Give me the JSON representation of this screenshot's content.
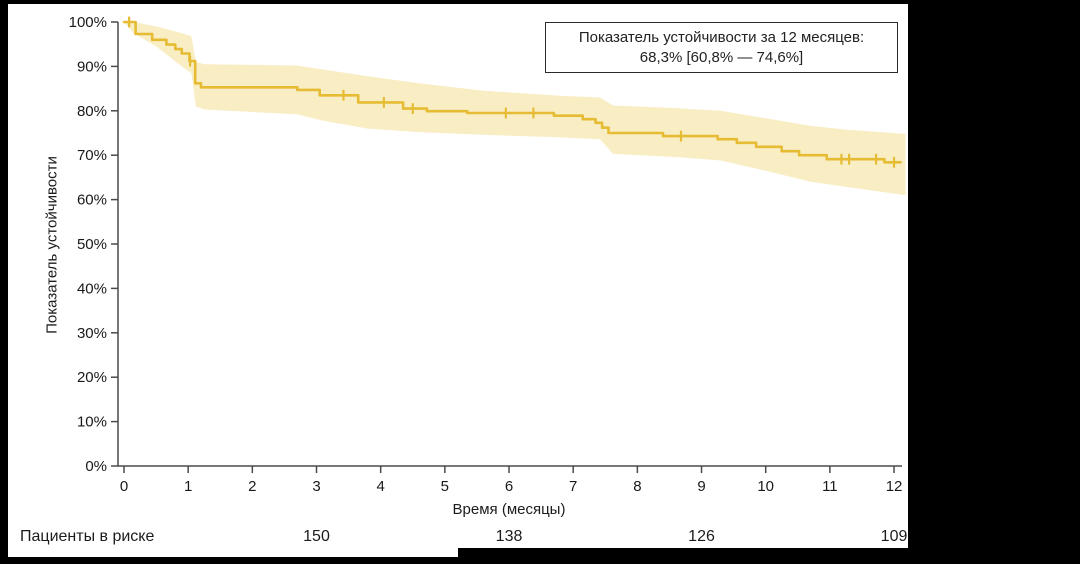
{
  "annotation": {
    "line1": "Показатель устойчивости за 12 месяцев:",
    "line2": "68,3% [60,8% — 74,6%]"
  },
  "y_axis": {
    "title": "Показатель устойчивости",
    "ticks": [
      {
        "v": 100,
        "label": "100%"
      },
      {
        "v": 90,
        "label": "90%"
      },
      {
        "v": 80,
        "label": "80%"
      },
      {
        "v": 70,
        "label": "70%"
      },
      {
        "v": 60,
        "label": "60%"
      },
      {
        "v": 50,
        "label": "50%"
      },
      {
        "v": 40,
        "label": "40%"
      },
      {
        "v": 30,
        "label": "30%"
      },
      {
        "v": 20,
        "label": "20%"
      },
      {
        "v": 10,
        "label": "10%"
      },
      {
        "v": 0,
        "label": "0%"
      }
    ]
  },
  "x_axis": {
    "title": "Время (месяцы)",
    "ticks": [
      {
        "m": 0,
        "label": "0"
      },
      {
        "m": 1,
        "label": "1"
      },
      {
        "m": 2,
        "label": "2"
      },
      {
        "m": 3,
        "label": "3"
      },
      {
        "m": 4,
        "label": "4"
      },
      {
        "m": 5,
        "label": "5"
      },
      {
        "m": 6,
        "label": "6"
      },
      {
        "m": 7,
        "label": "7"
      },
      {
        "m": 8,
        "label": "8"
      },
      {
        "m": 9,
        "label": "9"
      },
      {
        "m": 10,
        "label": "10"
      },
      {
        "m": 11,
        "label": "11"
      },
      {
        "m": 12,
        "label": "12"
      }
    ]
  },
  "at_risk": {
    "label": "Пациенты в риске",
    "entries": [
      {
        "month": 3,
        "value": "150"
      },
      {
        "month": 6,
        "value": "138"
      },
      {
        "month": 9,
        "value": "126"
      },
      {
        "month": 12,
        "value": "109"
      }
    ]
  },
  "chart_data": {
    "type": "line",
    "subtype": "kaplan-meier-step",
    "title": "",
    "xlabel": "Время (месяцы)",
    "ylabel": "Показатель устойчивости",
    "xlim": [
      0,
      12
    ],
    "ylim": [
      0,
      100
    ],
    "grid": false,
    "line_color": "#e5bc33",
    "band_color": "#f9edc4",
    "axis_color": "#4a4a4a",
    "estimate_12m": {
      "value_pct": 68.3,
      "ci_low_pct": 60.8,
      "ci_high_pct": 74.6
    },
    "steps": [
      [
        0,
        100
      ],
      [
        0.18,
        97.3
      ],
      [
        0.44,
        96.0
      ],
      [
        0.66,
        94.9
      ],
      [
        0.8,
        93.9
      ],
      [
        0.9,
        92.9
      ],
      [
        1.02,
        91.2
      ],
      [
        1.11,
        86.2
      ],
      [
        1.2,
        85.3
      ],
      [
        2.7,
        84.7
      ],
      [
        3.05,
        83.5
      ],
      [
        3.65,
        81.9
      ],
      [
        4.35,
        80.5
      ],
      [
        4.72,
        79.9
      ],
      [
        5.35,
        79.5
      ],
      [
        6.7,
        78.9
      ],
      [
        7.15,
        78.1
      ],
      [
        7.35,
        77.3
      ],
      [
        7.45,
        76.2
      ],
      [
        7.55,
        75.0
      ],
      [
        8.4,
        74.3
      ],
      [
        9.25,
        73.6
      ],
      [
        9.55,
        72.8
      ],
      [
        9.85,
        71.9
      ],
      [
        10.25,
        70.9
      ],
      [
        10.52,
        70.0
      ],
      [
        10.95,
        69.1
      ],
      [
        11.85,
        68.4
      ]
    ],
    "curve_end": 12.1,
    "censor_marks": [
      [
        0.08,
        100
      ],
      [
        1.03,
        91.2
      ],
      [
        3.42,
        83.5
      ],
      [
        4.05,
        81.9
      ],
      [
        4.5,
        80.5
      ],
      [
        5.95,
        79.5
      ],
      [
        6.38,
        79.5
      ],
      [
        8.68,
        74.3
      ],
      [
        11.18,
        69.1
      ],
      [
        11.3,
        69.1
      ],
      [
        11.72,
        69.1
      ],
      [
        12.0,
        68.4
      ]
    ],
    "confidence_band": [
      {
        "t": 0,
        "upper": 100,
        "lower": 100
      },
      {
        "t": 0.15,
        "upper": 100,
        "lower": 97.5
      },
      {
        "t": 0.5,
        "upper": 99,
        "lower": 94.5
      },
      {
        "t": 0.9,
        "upper": 97.5,
        "lower": 90
      },
      {
        "t": 1.05,
        "upper": 96.8,
        "lower": 88.5
      },
      {
        "t": 1.12,
        "upper": 91,
        "lower": 81
      },
      {
        "t": 1.25,
        "upper": 90.5,
        "lower": 80.3
      },
      {
        "t": 2.7,
        "upper": 90.2,
        "lower": 79.2
      },
      {
        "t": 3.1,
        "upper": 89.3,
        "lower": 77.8
      },
      {
        "t": 3.8,
        "upper": 87.8,
        "lower": 76.0
      },
      {
        "t": 4.6,
        "upper": 86.2,
        "lower": 75.2
      },
      {
        "t": 5.6,
        "upper": 84.5,
        "lower": 74.6
      },
      {
        "t": 6.8,
        "upper": 83.4,
        "lower": 74.0
      },
      {
        "t": 7.42,
        "upper": 83.0,
        "lower": 73.6
      },
      {
        "t": 7.62,
        "upper": 81.2,
        "lower": 70.3
      },
      {
        "t": 8.6,
        "upper": 80.6,
        "lower": 69.6
      },
      {
        "t": 9.3,
        "upper": 80.0,
        "lower": 68.8
      },
      {
        "t": 10.0,
        "upper": 78.3,
        "lower": 66.5
      },
      {
        "t": 10.7,
        "upper": 76.6,
        "lower": 64.0
      },
      {
        "t": 11.3,
        "upper": 75.7,
        "lower": 62.8
      },
      {
        "t": 12.18,
        "upper": 74.8,
        "lower": 61.0
      }
    ]
  }
}
